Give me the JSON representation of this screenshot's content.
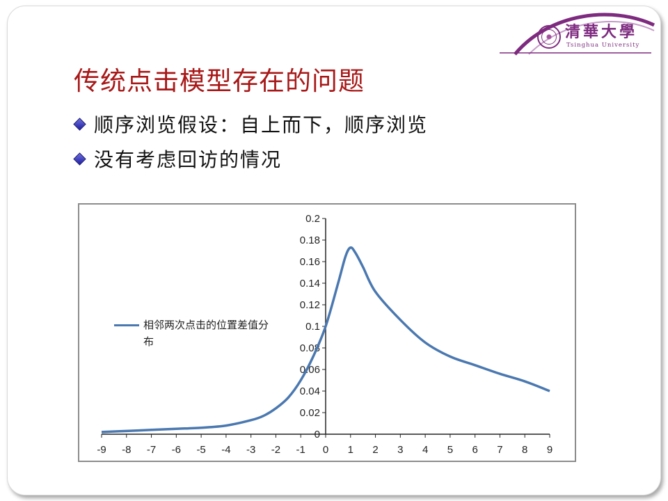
{
  "slide": {
    "title": "传统点击模型存在的问题",
    "bullets": [
      "顺序浏览假设：自上而下，顺序浏览",
      "没有考虑回访的情况"
    ],
    "logo": {
      "cn": "清華大學",
      "en": "Tsinghua University"
    }
  },
  "colors": {
    "title": "#a81818",
    "logo": "#7d2a7f",
    "series": "#4a78b0",
    "bullet": "#1e1ea0"
  },
  "chart_data": {
    "type": "line",
    "title": "",
    "xlabel": "",
    "ylabel": "",
    "xlim": [
      -9,
      9
    ],
    "ylim": [
      0,
      0.2
    ],
    "x_ticks": [
      "-9",
      "-8",
      "-7",
      "-6",
      "-5",
      "-4",
      "-3",
      "-2",
      "-1",
      "0",
      "1",
      "2",
      "3",
      "4",
      "5",
      "6",
      "7",
      "8",
      "9"
    ],
    "y_ticks": [
      "0",
      "0.02",
      "0.04",
      "0.06",
      "0.08",
      "0.1",
      "0.12",
      "0.14",
      "0.16",
      "0.18",
      "0.2"
    ],
    "legend_placement": "left-middle",
    "grid": false,
    "series": [
      {
        "name": "相邻两次点击的位置差值分布",
        "x": [
          -9,
          -8,
          -7,
          -6,
          -5,
          -4,
          -3,
          -2.5,
          -2,
          -1.5,
          -1,
          -0.5,
          0,
          0.5,
          0.8,
          1,
          1.2,
          1.5,
          2,
          3,
          4,
          5,
          6,
          7,
          8,
          9
        ],
        "y": [
          0.002,
          0.003,
          0.004,
          0.005,
          0.006,
          0.008,
          0.013,
          0.017,
          0.024,
          0.034,
          0.05,
          0.072,
          0.1,
          0.14,
          0.165,
          0.173,
          0.168,
          0.155,
          0.132,
          0.106,
          0.085,
          0.072,
          0.064,
          0.056,
          0.049,
          0.04
        ]
      }
    ]
  }
}
